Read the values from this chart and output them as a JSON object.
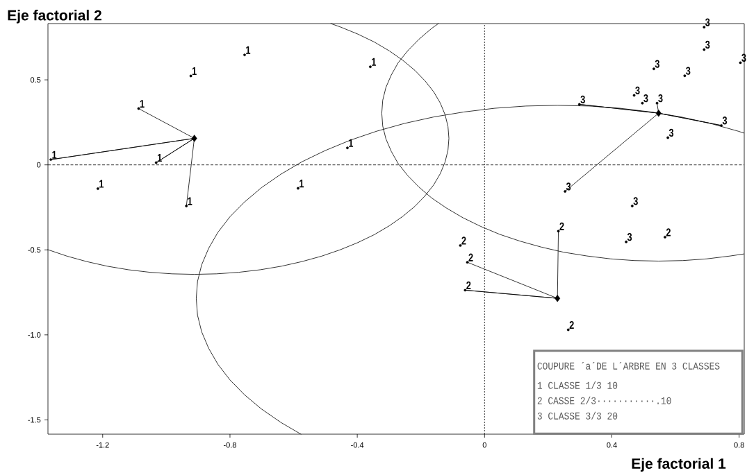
{
  "chart_data": {
    "type": "scatter",
    "xlabel": "Eje factorial 1",
    "ylabel": "Eje factorial 2",
    "xlim": [
      -1.372,
      0.816
    ],
    "ylim": [
      -1.584,
      0.831
    ],
    "xticks": [
      -1.2,
      -0.8,
      -0.4,
      0,
      0.4,
      0.8
    ],
    "yticks": [
      -1.5,
      {
        "value": -1.0,
        "label": "-1.0"
      },
      -0.5,
      0,
      0.5
    ],
    "ref_lines": [
      {
        "axis": "x",
        "value": 0,
        "line_style": "dotted"
      },
      {
        "axis": "y",
        "value": 0,
        "line_style": "dashed"
      }
    ],
    "annotations": [
      "COUPURE ´a´DE L´ARBRE EN 3 CLASSES",
      "1 CLASSE 1/3 10",
      "2 CASSE 2/3···········.10",
      "3 CLASSE 3/3 20"
    ],
    "series": [
      {
        "name": "1",
        "marker": "circle",
        "color": "#000000",
        "x": [
          -0.754,
          -0.923,
          -0.359,
          -1.087,
          -1.363,
          -1.032,
          -1.215,
          -0.937,
          -0.586,
          -0.431
        ],
        "values": [
          0.647,
          0.523,
          0.577,
          0.331,
          0.031,
          0.013,
          -0.14,
          -0.242,
          -0.138,
          0.1
        ]
      },
      {
        "name": "2",
        "marker": "circle",
        "color": "#000000",
        "x": [
          -0.076,
          -0.054,
          -0.061,
          0.232,
          0.263,
          0.567
        ],
        "values": [
          -0.474,
          -0.573,
          -0.737,
          -0.39,
          -0.97,
          -0.425
        ]
      },
      {
        "name": "3",
        "marker": "circle",
        "color": "#000000",
        "x": [
          0.69,
          0.69,
          0.804,
          0.532,
          0.629,
          0.47,
          0.496,
          0.542,
          0.298,
          0.744,
          0.576,
          0.253,
          0.464,
          0.445
        ],
        "values": [
          0.81,
          0.678,
          0.601,
          0.565,
          0.524,
          0.409,
          0.363,
          0.363,
          0.356,
          0.232,
          0.16,
          -0.156,
          -0.242,
          -0.453
        ]
      },
      {
        "marker": "diamond",
        "color": "#000000",
        "x": [
          -0.912,
          0.229,
          0.547
        ],
        "values": [
          0.156,
          -0.785,
          0.304
        ]
      },
      {
        "type": "line",
        "color": "#000000",
        "x": [
          -1.087,
          -0.912,
          -1.363,
          -0.912,
          -1.032,
          -0.912,
          -0.937
        ],
        "values": [
          0.331,
          0.156,
          0.031,
          0.156,
          0.013,
          0.156,
          -0.242
        ]
      },
      {
        "type": "line",
        "color": "#000000",
        "x": [
          -0.054,
          0.229,
          -0.061,
          0.229,
          0.232
        ],
        "values": [
          -0.573,
          -0.785,
          -0.737,
          -0.785,
          -0.39
        ]
      },
      {
        "type": "line",
        "color": "#000000",
        "x": [
          0.542,
          0.547,
          0.298,
          0.547,
          0.744,
          0.547,
          0.253
        ],
        "values": [
          0.363,
          0.304,
          0.356,
          0.304,
          0.232,
          0.304,
          -0.156
        ]
      },
      {
        "type": "line",
        "color": "#000000",
        "x": [
          -0.483,
          -0.453,
          -0.398,
          -0.346,
          -0.299,
          -0.257,
          -0.219,
          -0.187,
          -0.16,
          -0.139,
          -0.124,
          -0.115,
          -0.112,
          -0.115,
          -0.124,
          -0.139,
          -0.16,
          -0.187,
          -0.219,
          -0.257,
          -0.299,
          -0.346,
          -0.398,
          -0.453,
          -0.512,
          -0.574,
          -0.638,
          -0.705,
          -0.773,
          -0.842,
          -0.912,
          -0.982,
          -1.051,
          -1.119,
          -1.186,
          -1.25,
          -1.312,
          -1.372
        ],
        "values": [
          0.831,
          0.811,
          0.769,
          0.722,
          0.67,
          0.615,
          0.556,
          0.494,
          0.43,
          0.363,
          0.295,
          0.226,
          0.156,
          0.086,
          0.017,
          -0.051,
          -0.118,
          -0.182,
          -0.244,
          -0.303,
          -0.358,
          -0.41,
          -0.457,
          -0.499,
          -0.537,
          -0.569,
          -0.596,
          -0.617,
          -0.632,
          -0.641,
          -0.644,
          -0.641,
          -0.632,
          -0.617,
          -0.596,
          -0.569,
          -0.537,
          -0.499
        ]
      },
      {
        "type": "line",
        "color": "#000000",
        "x": [
          0.815,
          0.797,
          0.709,
          0.617,
          0.523,
          0.426,
          0.328,
          0.229,
          0.13,
          0.032,
          -0.065,
          -0.159,
          -0.251,
          -0.339,
          -0.422,
          -0.501,
          -0.574,
          -0.64,
          -0.701,
          -0.754,
          -0.8,
          -0.838,
          -0.867,
          -0.889,
          -0.902,
          -0.906,
          -0.902,
          -0.889,
          -0.867,
          -0.838,
          -0.8,
          -0.754,
          -0.701,
          -0.64,
          -0.577
        ],
        "values": [
          0.187,
          0.198,
          0.244,
          0.282,
          0.311,
          0.333,
          0.346,
          0.35,
          0.346,
          0.333,
          0.311,
          0.282,
          0.244,
          0.198,
          0.145,
          0.084,
          0.018,
          -0.055,
          -0.134,
          -0.218,
          -0.305,
          -0.397,
          -0.491,
          -0.588,
          -0.686,
          -0.785,
          -0.884,
          -0.982,
          -1.079,
          -1.173,
          -1.265,
          -1.353,
          -1.436,
          -1.515,
          -1.584
        ]
      },
      {
        "type": "line",
        "color": "#000000",
        "x": [
          -0.145,
          -0.166,
          -0.206,
          -0.241,
          -0.271,
          -0.293,
          -0.31,
          -0.32,
          -0.323,
          -0.32,
          -0.31,
          -0.293,
          -0.271,
          -0.241,
          -0.206,
          -0.166,
          -0.119,
          -0.068,
          -0.012,
          0.048,
          0.112,
          0.179,
          0.249,
          0.322,
          0.396,
          0.471,
          0.547,
          0.623,
          0.698,
          0.772,
          0.815
        ],
        "values": [
          0.831,
          0.803,
          0.739,
          0.672,
          0.602,
          0.529,
          0.455,
          0.38,
          0.304,
          0.228,
          0.153,
          0.079,
          0.006,
          -0.064,
          -0.131,
          -0.195,
          -0.255,
          -0.311,
          -0.362,
          -0.409,
          -0.449,
          -0.484,
          -0.514,
          -0.536,
          -0.553,
          -0.563,
          -0.566,
          -0.563,
          -0.553,
          -0.536,
          -0.524
        ]
      }
    ]
  }
}
